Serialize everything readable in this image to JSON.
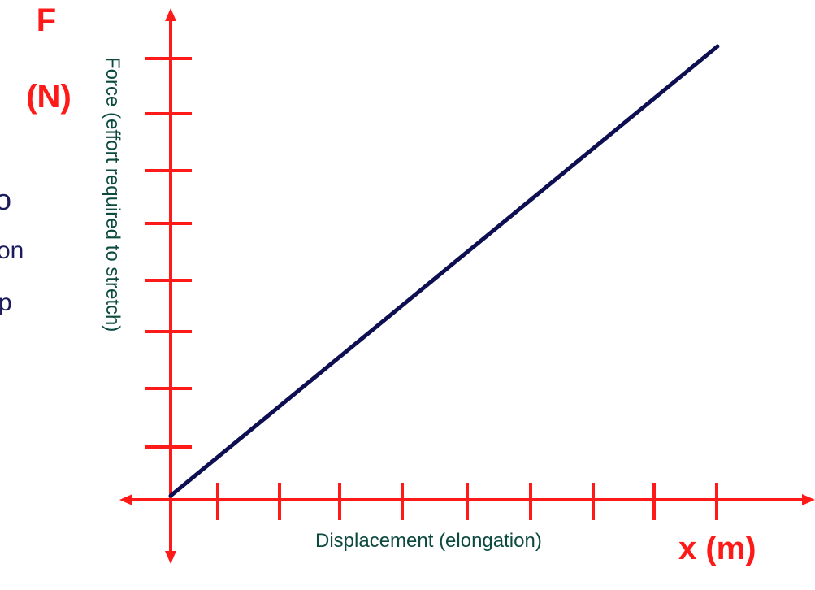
{
  "graph": {
    "y_symbol": "F",
    "y_unit": "(N)",
    "y_label": "Force (effort required to stretch)",
    "x_label": "Displacement (elongation)",
    "x_symbol": "x (m)",
    "side_text": [
      "o",
      "on",
      "p"
    ]
  }
}
